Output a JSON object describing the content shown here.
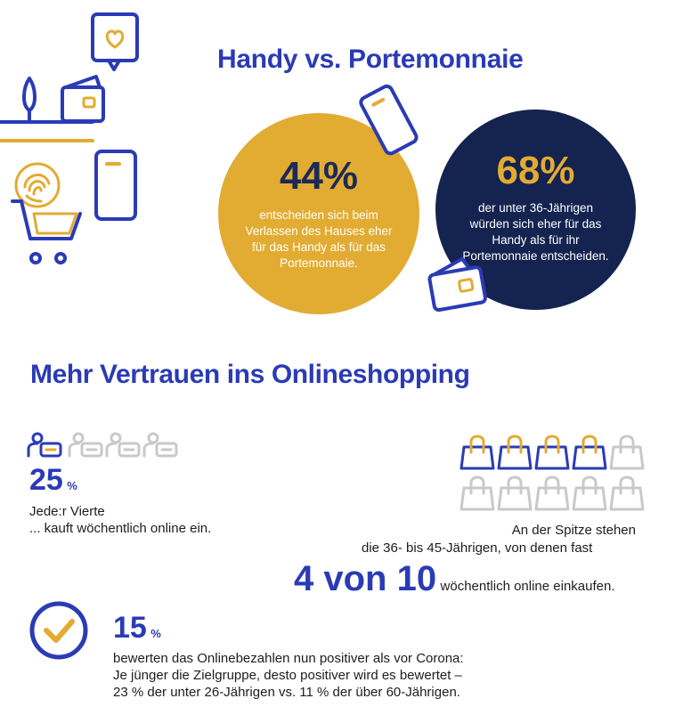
{
  "section1": {
    "title": "Handy vs. Portemonnaie",
    "stat_left": {
      "value": "44%",
      "text": "entscheiden sich beim Verlassen des Hauses eher für das Handy als für das Portemonnaie."
    },
    "stat_right": {
      "value": "68%",
      "text": "der unter 36-Jährigen würden sich eher für das Handy als für ihr Portemonnaie entscheiden."
    }
  },
  "section2": {
    "title": "Mehr Vertrauen ins Onlineshopping",
    "stat_weekly": {
      "value": "25",
      "unit": "%",
      "line1": "Jede:r Vierte",
      "line2": "... kauft wöchentlich online ein.",
      "highlighted_people": 1,
      "total_people": 4
    },
    "stat_age": {
      "line1": "An der Spitze stehen",
      "line2": "die 36- bis 45-Jährigen, von denen fast",
      "ratio": "4 von 10",
      "line3": "wöchentlich online einkaufen.",
      "highlighted_bags": 4,
      "total_bags": 10
    },
    "stat_positive": {
      "value": "15",
      "unit": "%",
      "line1": "bewerten das Onlinebezahlen nun positiver als vor Corona:",
      "line2": "Je jünger die Zielgruppe, desto positiver wird es bewertet –",
      "line3": "23 % der unter 26-Jährigen vs. 11 % der über 60-Jährigen."
    }
  },
  "colors": {
    "blue": "#2b3bb5",
    "gold": "#e2ab32",
    "navy": "#14234f",
    "grey": "#c9c9c9"
  }
}
